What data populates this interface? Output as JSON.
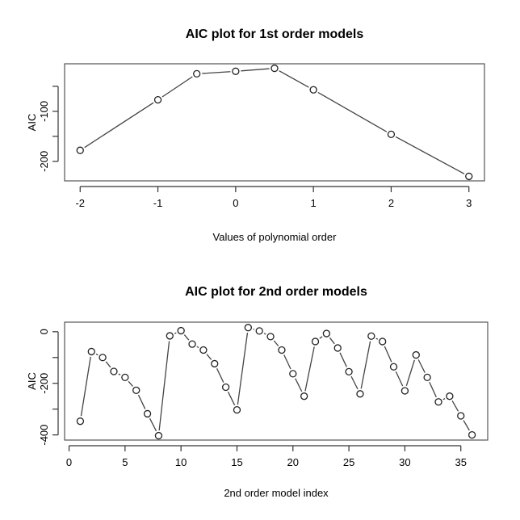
{
  "chart_data": [
    {
      "type": "line",
      "title": "AIC plot for 1st order models",
      "xlabel": "Values of polynomial order",
      "ylabel": "AIC",
      "x": [
        -2,
        -1,
        -0.5,
        0,
        0.5,
        1,
        2,
        3
      ],
      "y": [
        -178,
        -77,
        -25,
        -20,
        -14,
        -57,
        -146,
        -230
      ],
      "xlim": [
        -2.2,
        3.2
      ],
      "ylim": [
        -239,
        -5
      ],
      "xticks": [
        -2,
        -1,
        0,
        1,
        2,
        3
      ],
      "xtick_labels": [
        "-2",
        "-1",
        "0",
        "1",
        "2",
        "3"
      ],
      "yticks": [
        -50,
        -100,
        -150,
        -200
      ],
      "ytick_labels": [
        "",
        "-100",
        "",
        "-200"
      ],
      "grid": false
    },
    {
      "type": "line",
      "title": "AIC plot for 2nd order models",
      "xlabel": "2nd order model index",
      "ylabel": "AIC",
      "x": [
        1,
        2,
        3,
        4,
        5,
        6,
        7,
        8,
        9,
        10,
        11,
        12,
        13,
        14,
        15,
        16,
        17,
        18,
        19,
        20,
        21,
        22,
        23,
        24,
        25,
        26,
        27,
        28,
        29,
        30,
        31,
        32,
        33,
        34,
        35,
        36
      ],
      "y": [
        -347,
        -77,
        -100,
        -154,
        -177,
        -227,
        -318,
        -403,
        -16,
        4,
        -48,
        -71,
        -124,
        -215,
        -303,
        16,
        3,
        -19,
        -71,
        -163,
        -250,
        -38,
        -7,
        -63,
        -155,
        -241,
        -17,
        -38,
        -136,
        -229,
        -90,
        -177,
        -272,
        -250,
        -326,
        -400
      ],
      "xlim": [
        -0.4,
        37.4
      ],
      "ylim": [
        -420,
        37
      ],
      "xticks": [
        0,
        5,
        10,
        15,
        20,
        25,
        30,
        35
      ],
      "xtick_labels": [
        "0",
        "5",
        "10",
        "15",
        "20",
        "25",
        "30",
        "35"
      ],
      "yticks": [
        0,
        -100,
        -200,
        -300,
        -400
      ],
      "ytick_labels": [
        "0",
        "",
        "-200",
        "",
        "-400"
      ],
      "grid": false
    }
  ]
}
